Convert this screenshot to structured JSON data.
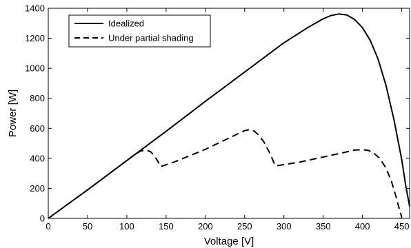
{
  "chart_data": {
    "type": "line",
    "title": "",
    "xlabel": "Voltage [V]",
    "ylabel": "Power [W]",
    "xlim": [
      0,
      460
    ],
    "ylim": [
      0,
      1400
    ],
    "xticks": [
      "0",
      "50",
      "100",
      "150",
      "200",
      "250",
      "300",
      "350",
      "400",
      "450"
    ],
    "yticks": [
      "0",
      "200",
      "400",
      "600",
      "800",
      "1000",
      "1200",
      "1400"
    ],
    "grid": false,
    "legend_position": "top-left",
    "series": [
      {
        "name": "Idealized",
        "style": "solid",
        "color": "#000000",
        "x": [
          0,
          50,
          100,
          150,
          200,
          250,
          300,
          330,
          350,
          360,
          370,
          380,
          390,
          400,
          410,
          420,
          430,
          440,
          450,
          455,
          460
        ],
        "y": [
          0,
          190,
          385,
          580,
          780,
          975,
          1170,
          1270,
          1330,
          1352,
          1362,
          1355,
          1325,
          1270,
          1185,
          1060,
          885,
          660,
          390,
          220,
          80
        ]
      },
      {
        "name": "Under partial shading",
        "style": "dashed",
        "color": "#000000",
        "x": [
          0,
          50,
          100,
          110,
          118,
          125,
          130,
          135,
          140,
          143,
          160,
          200,
          240,
          250,
          255,
          262,
          268,
          275,
          282,
          288,
          290,
          320,
          360,
          390,
          400,
          408,
          415,
          422,
          430,
          437,
          443,
          447,
          450
        ],
        "y": [
          0,
          190,
          385,
          425,
          450,
          455,
          445,
          418,
          375,
          345,
          375,
          460,
          560,
          585,
          590,
          582,
          555,
          505,
          435,
          362,
          350,
          375,
          420,
          455,
          458,
          452,
          432,
          400,
          335,
          245,
          140,
          60,
          5
        ]
      }
    ]
  }
}
